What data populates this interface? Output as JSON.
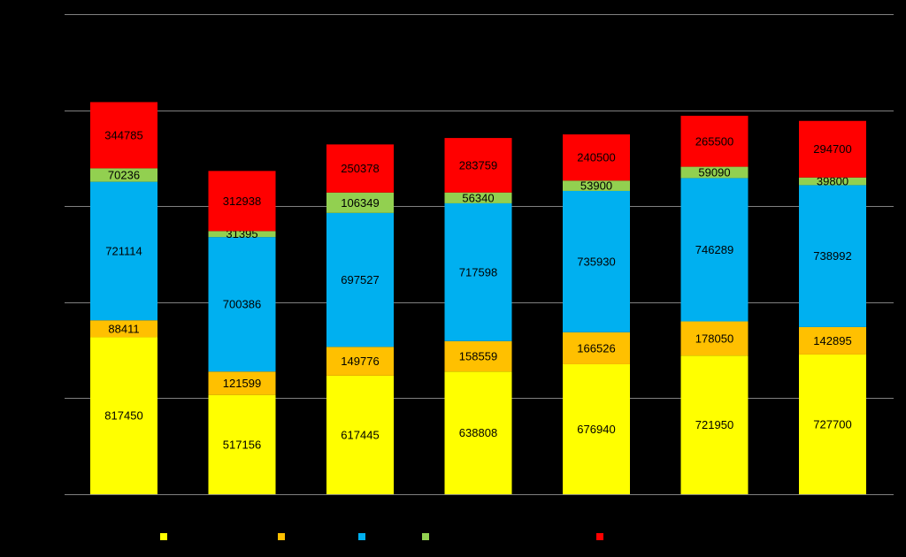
{
  "chart_data": {
    "type": "bar",
    "stacked": true,
    "background": "#000000",
    "grid": true,
    "gridline_color": "#808080",
    "ylim": [
      0,
      2500000
    ],
    "y_gridlines": [
      500000,
      1000000,
      1500000,
      2000000,
      2500000
    ],
    "categories": [
      "",
      "",
      "",
      "",
      "",
      "",
      ""
    ],
    "legend_position": "bottom",
    "series": [
      {
        "color": "#FFFF00",
        "values": [
          817450,
          517156,
          617445,
          638808,
          676940,
          721950,
          727700
        ]
      },
      {
        "color": "#FFC000",
        "values": [
          88411,
          121599,
          149776,
          158559,
          166526,
          178050,
          142895
        ]
      },
      {
        "color": "#00B0F0",
        "values": [
          721114,
          700386,
          697527,
          717598,
          735930,
          746289,
          738992
        ]
      },
      {
        "color": "#92D050",
        "values": [
          70236,
          31395,
          106349,
          56340,
          53900,
          59090,
          39800
        ]
      },
      {
        "color": "#FF0000",
        "values": [
          344785,
          312938,
          250378,
          283759,
          240500,
          265500,
          294700
        ]
      }
    ]
  }
}
